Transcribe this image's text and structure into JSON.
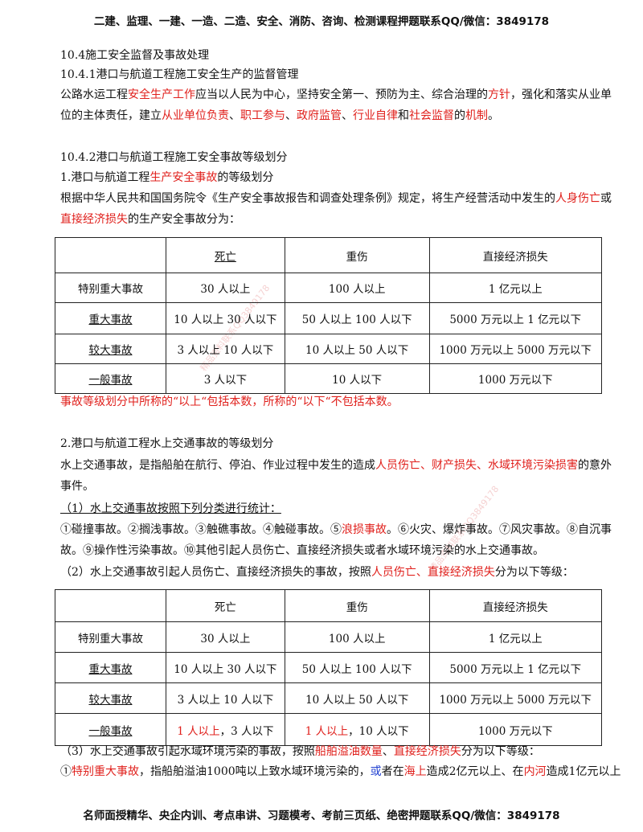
{
  "header": "二建、监理、一建、一造、二造、安全、消防、咨询、检测课程押题联系QQ/微信：3849178",
  "footer": "名师面授精华、央企内训、考点串讲、习题模考、考前三页纸、绝密押题联系QQ/微信：3849178",
  "watermark": "精品资料联系QQ3849178",
  "s1_title": "10.4施工安全监督及事故处理",
  "s1_1_title": "10.4.1港口与航道工程施工安全生产的监督管理",
  "p1": {
    "a": "公路水运工程",
    "b": "安全生产工作",
    "c": "应当以人民为中心，坚持安全第一、预防为主、综合治理的",
    "d": "方针",
    "e": "，强化和落实从业单",
    "f": "位的主体责任，建立",
    "g": "从业单位负责",
    "h": "、",
    "i": "职工参与",
    "j": "、",
    "k": "政府监管",
    "l": "、",
    "m": "行业自律",
    "n": "和",
    "o": "社会监督",
    "p": "的",
    "q": "机制",
    "r": "。"
  },
  "s1_2_title": "10.4.2港口与航道工程施工安全事故等级划分",
  "sub1": {
    "a": "1.港口与航道工程",
    "b": "生产安全事故",
    "c": "的等级划分"
  },
  "p2": {
    "a": "根据中华人民共和国国务院令《生产安全事故报告和调查处理条例》规定，将生产经营活动中发生的",
    "b": "人身伤亡",
    "c": "或",
    "d": "直接经济损失",
    "e": "的生产安全事故分为："
  },
  "table1": {
    "headers": [
      "",
      "死亡",
      "重伤",
      "直接经济损失"
    ],
    "rows": [
      [
        "特别重大事故",
        "30 人以上",
        "100 人以上",
        "1 亿元以上"
      ],
      [
        "重大事故",
        "10 人以上 30 人以下",
        "50 人以上 100 人以下",
        "5000 万元以上 1 亿元以下"
      ],
      [
        "较大事故",
        "3 人以上 10 人以下",
        "10 人以上 50 人以下",
        "1000 万元以上 5000 万元以下"
      ],
      [
        "一般事故",
        "3 人以下",
        "10 人以下",
        "1000 万元以下"
      ]
    ]
  },
  "note1": "事故等级划分中所称的“以上“包括本数，所称的“以下“不包括本数。",
  "sub2": "2.港口与航道工程水上交通事故的等级划分",
  "p3": {
    "a": "水上交通事故，是指船舶在航行、停泊、作业过程中发生的造成",
    "b": "人员伤亡、财产损失、水域环境污染损害",
    "c": "的意外",
    "d": "事件。"
  },
  "item1": "（1）水上交通事故按照下列分类进行统计：",
  "list1": {
    "a": "①碰撞事故。②搁浅事故。③触礁事故。④触碰事故。⑤",
    "b": "浪损事故",
    "c": "。⑥火灾、爆炸事故。⑦风灾事故。⑧自沉事",
    "d": "故。⑨操作性污染事故。⑩其他引起人员伤亡、直接经济损失或者水域环境污染的水上交通事故。"
  },
  "item2": {
    "a": "（2）水上交通事故引起人员伤亡、直接经济损失的事故，按照",
    "b": "人员伤亡、直接经济损失",
    "c": "分为以下等级："
  },
  "table2": {
    "headers": [
      "",
      "死亡",
      "重伤",
      "直接经济损失"
    ],
    "rows": [
      [
        "特别重大事故",
        "30 人以上",
        "100 人以上",
        "1 亿元以上"
      ],
      [
        "重大事故",
        "10 人以上 30 人以下",
        "50 人以上 100 人以下",
        "5000 万元以上 1 亿元以下"
      ],
      [
        "较大事故",
        "3 人以上 10 人以下",
        "10 人以上 50 人以下",
        "1000 万元以上 5000 万元以下"
      ]
    ],
    "last_row": {
      "label": "一般事故",
      "death_red": "1 人以上",
      "death_rest": "，3 人以下",
      "injury_red": "1 人以上",
      "injury_rest": "，10 人以下",
      "loss": "1000 万元以下"
    }
  },
  "item3": {
    "a": "（3）水上交通事故引起水域环境污染的事故，按照",
    "b": "船舶溢油数量",
    "c": "、",
    "d": "直接经济损失",
    "e": "分为以下等级："
  },
  "last": {
    "a": "①",
    "b": "特别重大事故",
    "c": "，指船舶溢油1000吨以上致水域环境污染的，",
    "d": "或",
    "e": "者在",
    "f": "海上",
    "g": "造成2亿元以上、在",
    "h": "内河",
    "i": "造成1亿元以上"
  }
}
